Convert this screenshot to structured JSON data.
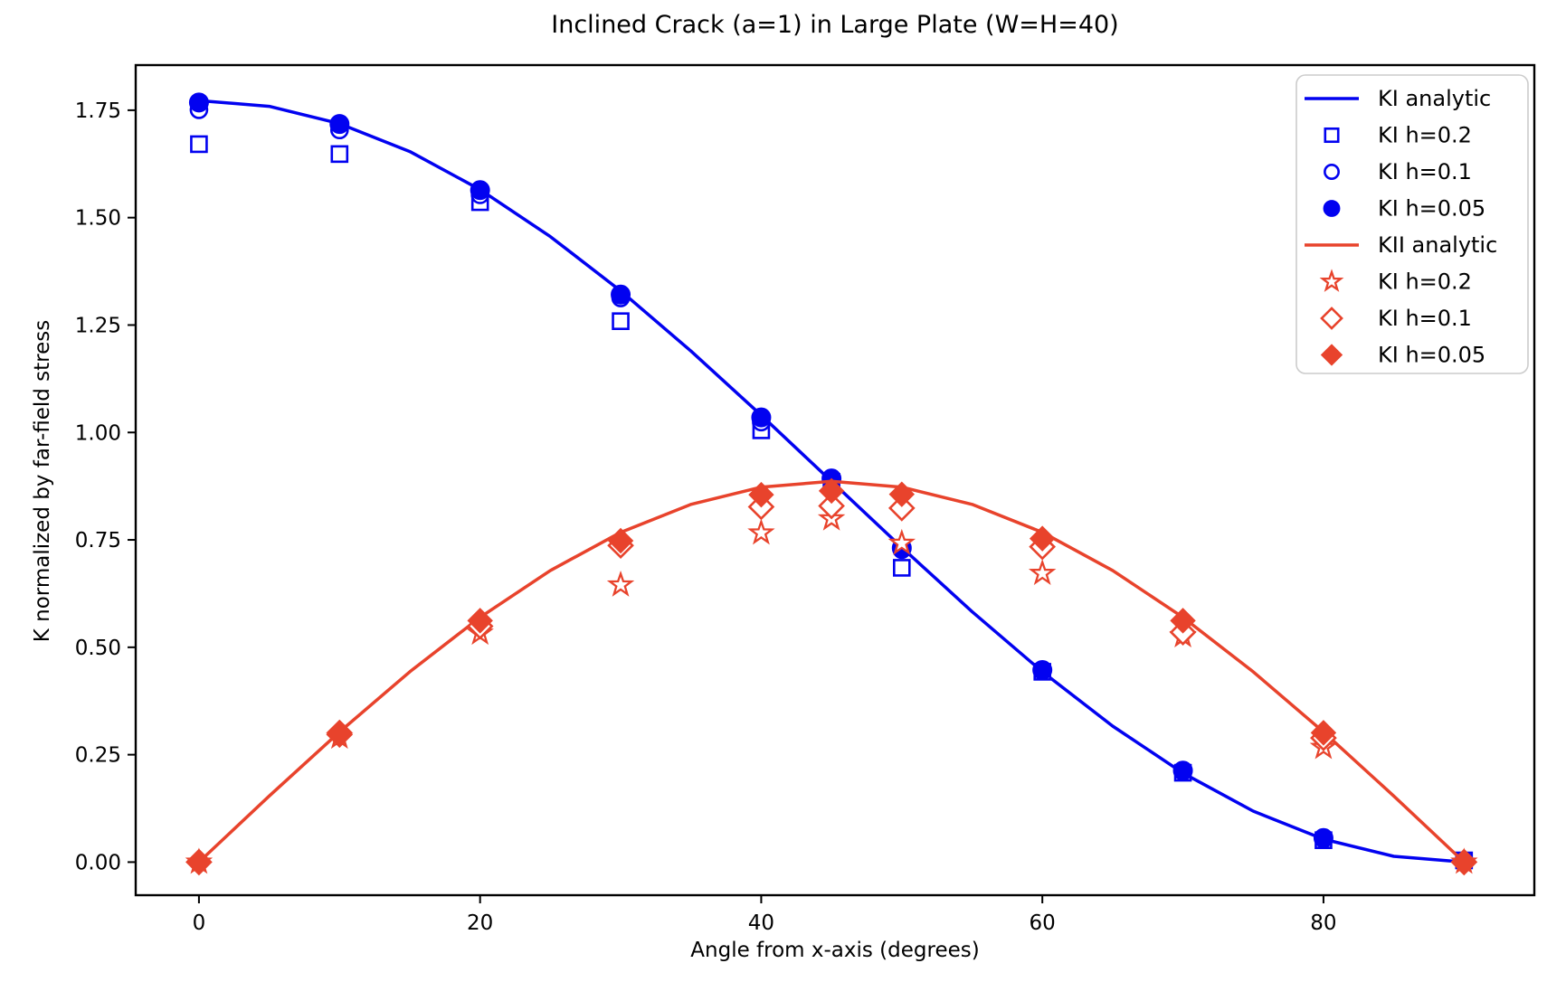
{
  "colors": {
    "ki_blue": "#0202f0",
    "kii_red": "#e8432c",
    "axis_black": "#000000",
    "legend_border": "#cccccc",
    "text": "#000000"
  },
  "chart_data": {
    "type": "line",
    "title": "Inclined Crack (a=1) in Large Plate (W=H=40)",
    "xlabel": "Angle from x-axis (degrees)",
    "ylabel": "K normalized by far-field stress",
    "xlim": [
      -4.5,
      95.0
    ],
    "ylim": [
      -0.077,
      1.855
    ],
    "xticks": [
      0,
      20,
      40,
      60,
      80
    ],
    "yticks": [
      0.0,
      0.25,
      0.5,
      0.75,
      1.0,
      1.25,
      1.5,
      1.75
    ],
    "grid": false,
    "legend_position": "upper right",
    "analytic_x": [
      0,
      5,
      10,
      15,
      20,
      25,
      30,
      35,
      40,
      45,
      50,
      55,
      60,
      65,
      70,
      75,
      80,
      85,
      90
    ],
    "marker_x": [
      0,
      10,
      20,
      30,
      40,
      45,
      50,
      60,
      70,
      80,
      90
    ],
    "series": [
      {
        "name": "KI analytic",
        "kind": "line",
        "color": "#0202f0",
        "values": [
          1.7725,
          1.759,
          1.7189,
          1.6538,
          1.5651,
          1.4557,
          1.3294,
          1.1895,
          1.0401,
          0.8862,
          0.7324,
          0.583,
          0.4431,
          0.3166,
          0.2073,
          0.1187,
          0.0534,
          0.0135,
          0.0
        ]
      },
      {
        "name": "KI h=0.2",
        "kind": "marker",
        "marker": "square-open",
        "color": "#0202f0",
        "values": [
          1.671,
          1.648,
          1.536,
          1.259,
          1.005,
          0.885,
          0.685,
          0.443,
          0.208,
          0.051,
          0.004
        ]
      },
      {
        "name": "KI h=0.1",
        "kind": "marker",
        "marker": "circle-open",
        "color": "#0202f0",
        "values": [
          1.751,
          1.704,
          1.553,
          1.313,
          1.024,
          0.889,
          0.727,
          0.445,
          0.211,
          0.054,
          0.002
        ]
      },
      {
        "name": "KI h=0.05",
        "kind": "marker",
        "marker": "circle-filled",
        "color": "#0202f0",
        "values": [
          1.768,
          1.718,
          1.564,
          1.321,
          1.035,
          0.893,
          0.731,
          0.447,
          0.213,
          0.056,
          0.001
        ]
      },
      {
        "name": "KII analytic",
        "kind": "line",
        "color": "#e8432c",
        "values": [
          0.0,
          0.1539,
          0.3031,
          0.4431,
          0.5697,
          0.6788,
          0.7675,
          0.8325,
          0.8727,
          0.8862,
          0.8727,
          0.8325,
          0.7675,
          0.6788,
          0.5697,
          0.4431,
          0.3031,
          0.1539,
          0.0
        ]
      },
      {
        "name": "KI h=0.2",
        "kind": "marker",
        "marker": "star-open",
        "color": "#e8432c",
        "values": [
          0.0,
          0.291,
          0.533,
          0.645,
          0.766,
          0.799,
          0.742,
          0.672,
          0.527,
          0.267,
          0.0
        ]
      },
      {
        "name": "KI h=0.1",
        "kind": "marker",
        "marker": "diamond-open",
        "color": "#e8432c",
        "values": [
          0.0,
          0.297,
          0.549,
          0.737,
          0.827,
          0.829,
          0.824,
          0.734,
          0.535,
          0.289,
          0.0
        ]
      },
      {
        "name": "KI h=0.05",
        "kind": "marker",
        "marker": "diamond-filled",
        "color": "#e8432c",
        "values": [
          0.001,
          0.302,
          0.562,
          0.748,
          0.855,
          0.864,
          0.856,
          0.753,
          0.562,
          0.301,
          0.001
        ]
      }
    ],
    "legend": [
      {
        "label": "KI analytic",
        "handle": "line",
        "color": "#0202f0"
      },
      {
        "label": "KI h=0.2",
        "handle": "square-open",
        "color": "#0202f0"
      },
      {
        "label": "KI h=0.1",
        "handle": "circle-open",
        "color": "#0202f0"
      },
      {
        "label": "KI h=0.05",
        "handle": "circle-filled",
        "color": "#0202f0"
      },
      {
        "label": "KII analytic",
        "handle": "line",
        "color": "#e8432c"
      },
      {
        "label": "KI h=0.2",
        "handle": "star-open",
        "color": "#e8432c"
      },
      {
        "label": "KI h=0.1",
        "handle": "diamond-open",
        "color": "#e8432c"
      },
      {
        "label": "KI h=0.05",
        "handle": "diamond-filled",
        "color": "#e8432c"
      }
    ]
  }
}
